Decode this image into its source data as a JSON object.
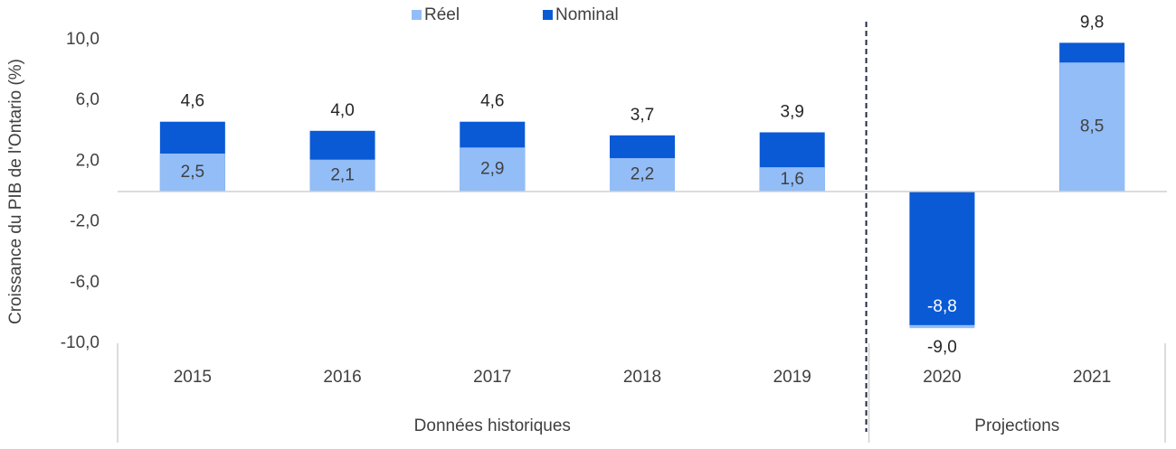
{
  "chart_data": {
    "type": "bar",
    "y_label": "Croissance du PIB de l'Ontario (%)",
    "categories": [
      "2015",
      "2016",
      "2017",
      "2018",
      "2019",
      "2020",
      "2021"
    ],
    "groups": [
      "Données historiques",
      "Projections"
    ],
    "series": [
      {
        "name": "Réel",
        "color": "#93bdf7",
        "values": [
          2.5,
          2.1,
          2.9,
          2.2,
          1.6,
          -9.0,
          8.5
        ],
        "value_labels": [
          "2,5",
          "2,1",
          "2,9",
          "2,2",
          "1,6",
          "-9,0",
          "8,5"
        ]
      },
      {
        "name": "Nominal",
        "color": "#0a5ad6",
        "values": [
          4.6,
          4.0,
          4.6,
          3.7,
          3.9,
          -8.8,
          9.8
        ],
        "value_labels": [
          "4,6",
          "4,0",
          "4,6",
          "3,7",
          "3,9",
          "-8,8",
          "9,8"
        ]
      }
    ],
    "ylim": [
      -10,
      10
    ],
    "yticks": [
      {
        "value": 10,
        "label": "10,0"
      },
      {
        "value": 6,
        "label": "6,0"
      },
      {
        "value": 2,
        "label": "2,0"
      },
      {
        "value": -2,
        "label": "-2,0"
      },
      {
        "value": -6,
        "label": "-6,0"
      },
      {
        "value": -10,
        "label": "-10,0"
      }
    ]
  }
}
